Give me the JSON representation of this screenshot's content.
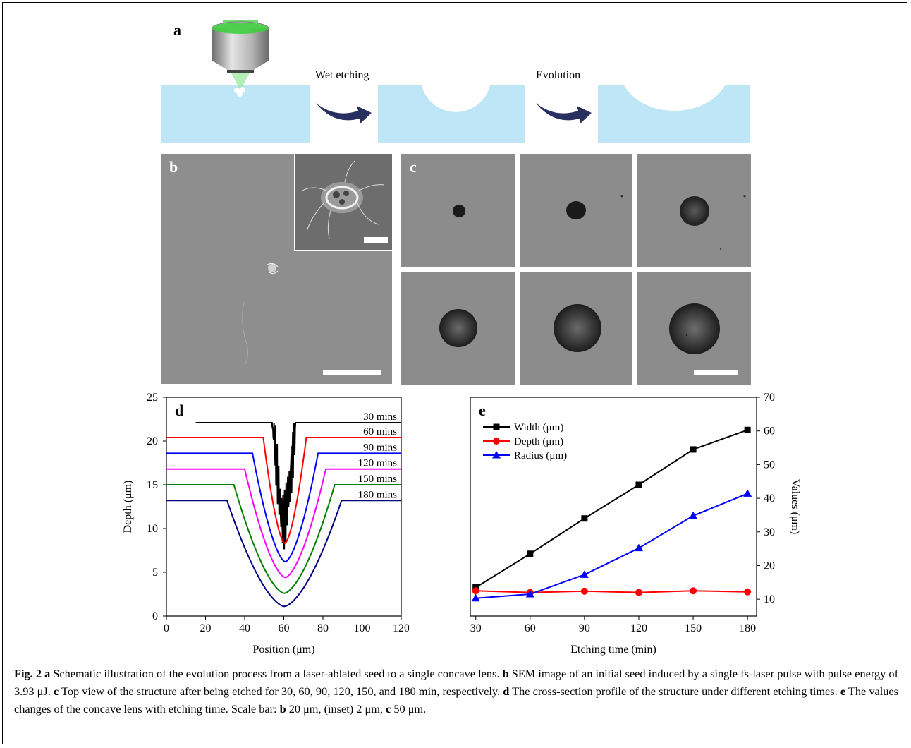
{
  "panel_labels": {
    "a": "a",
    "b": "b",
    "c": "c",
    "d": "d",
    "e": "e"
  },
  "schematic": {
    "step1_label": "Wet etching",
    "step2_label": "Evolution",
    "colors": {
      "substrate": "#bfe6f6",
      "arrow": "#27305f",
      "laser": "#55d655"
    }
  },
  "chart_data": [
    {
      "type": "line",
      "panel": "d",
      "xlabel": "Position (μm)",
      "ylabel": "Depth (μm)",
      "xlim": [
        0,
        120
      ],
      "ylim": [
        0,
        25
      ],
      "xticks": [
        0,
        20,
        40,
        60,
        80,
        100,
        120
      ],
      "yticks": [
        0,
        5,
        10,
        15,
        20,
        25
      ],
      "series": [
        {
          "name": "30 mins",
          "color": "#000000",
          "plateau": 22.1,
          "bottom": 9.2,
          "x_left": 15,
          "edge_left": 54,
          "edge_right": 66
        },
        {
          "name": "60 mins",
          "color": "#ff0000",
          "plateau": 20.4,
          "bottom": 8.3,
          "x_left": 0,
          "edge_left": 49.5,
          "edge_right": 71.5
        },
        {
          "name": "90 mins",
          "color": "#0000ff",
          "plateau": 18.6,
          "bottom": 6.2,
          "x_left": 0,
          "edge_left": 44,
          "edge_right": 77.5
        },
        {
          "name": "120 mins",
          "color": "#ff00ff",
          "plateau": 16.8,
          "bottom": 4.4,
          "x_left": 0,
          "edge_left": 40,
          "edge_right": 81.5
        },
        {
          "name": "150 mins",
          "color": "#008000",
          "plateau": 15.0,
          "bottom": 2.6,
          "x_left": 0,
          "edge_left": 34.5,
          "edge_right": 86
        },
        {
          "name": "180 mins",
          "color": "#000080",
          "plateau": 13.2,
          "bottom": 1.1,
          "x_left": 0,
          "edge_left": 31,
          "edge_right": 89.5
        }
      ]
    },
    {
      "type": "line",
      "panel": "e",
      "xlabel": "Etching time (min)",
      "ylabel": "Values (μm)",
      "x": [
        30,
        60,
        90,
        120,
        150,
        180
      ],
      "xlim": [
        27,
        185
      ],
      "ylim": [
        5,
        70
      ],
      "xticks": [
        30,
        60,
        90,
        120,
        150,
        180
      ],
      "yticks": [
        10,
        20,
        30,
        40,
        50,
        60,
        70
      ],
      "legend": "top-left",
      "series": [
        {
          "name": "Width (μm)",
          "color": "#000000",
          "marker": "square",
          "values": [
            13.5,
            23.5,
            34.0,
            44.0,
            54.5,
            60.3
          ]
        },
        {
          "name": "Depth (μm)",
          "color": "#ff0000",
          "marker": "circle",
          "values": [
            12.5,
            12.0,
            12.4,
            12.0,
            12.5,
            12.2
          ]
        },
        {
          "name": "Radius (μm)",
          "color": "#0000ff",
          "marker": "triangle",
          "values": [
            10.3,
            11.5,
            17.3,
            25.2,
            34.8,
            41.4
          ]
        }
      ]
    }
  ],
  "caption": {
    "a_label": "Fig. 2 a",
    "a_text": " Schematic illustration of the evolution process from a laser-ablated seed to a single concave lens. ",
    "b_label": "b",
    "b_text": " SEM image of an initial seed induced by a single fs-laser pulse with pulse energy of 3.93 μJ. ",
    "c_label": "c",
    "c_text": " Top view of the structure after being etched for 30, 60, 90, 120, 150, and 180 min, respectively. ",
    "d_label": "d",
    "d_text": " The cross-section profile of the structure under different etching times. ",
    "e_label": "e",
    "e_text": " The values changes of the concave lens with etching time. Scale bar: ",
    "sb_b_label": "b",
    "sb_b_text": " 20 μm, (inset) 2 μm, ",
    "sb_c_label": "c",
    "sb_c_text": " 50 μm."
  }
}
